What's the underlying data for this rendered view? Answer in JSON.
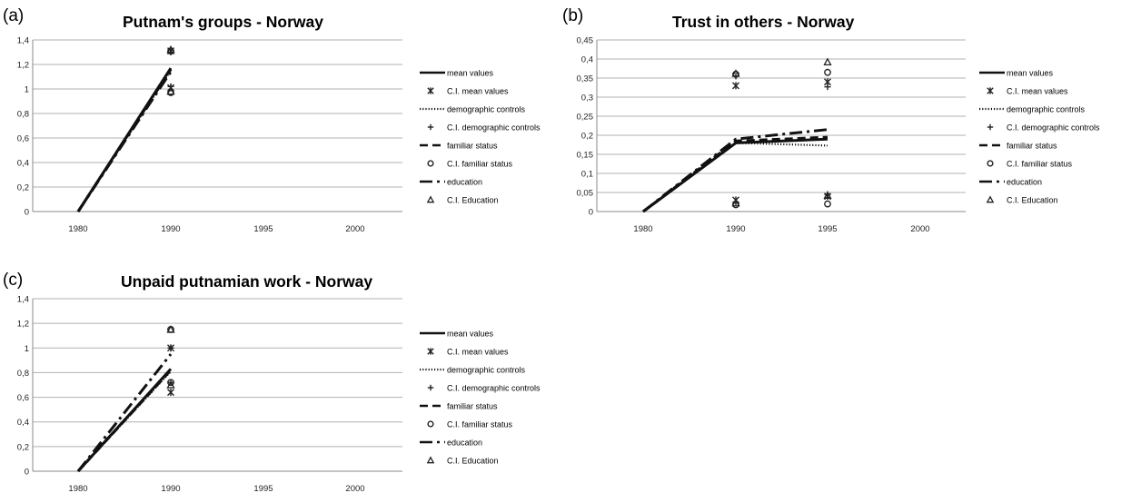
{
  "chart_data": [
    {
      "panel_label": "(a)",
      "type": "line",
      "title": "Putnam's groups - Norway",
      "x_categories": [
        "1980",
        "1990",
        "1995",
        "2000"
      ],
      "y_ticks": [
        "0",
        "0,2",
        "0,4",
        "0,6",
        "0,8",
        "1",
        "1,2",
        "1,4"
      ],
      "ylim": [
        0,
        1.4
      ],
      "grid": true,
      "legend_position": "right",
      "legend": [
        "mean values",
        "C.I. mean values",
        "demographic controls",
        "C.I. demographic controls",
        "familiar status",
        "C.I. familiar status",
        "education",
        "C.I. Education"
      ],
      "series": [
        {
          "name": "mean values",
          "style": "solid",
          "x": [
            "1980",
            "1990"
          ],
          "values": [
            0,
            1.17
          ]
        },
        {
          "name": "demographic controls",
          "style": "dotted",
          "x": [
            "1980",
            "1990"
          ],
          "values": [
            0,
            1.15
          ]
        },
        {
          "name": "familiar status",
          "style": "dashed",
          "x": [
            "1980",
            "1990"
          ],
          "values": [
            0,
            1.16
          ]
        },
        {
          "name": "education",
          "style": "dashdot",
          "x": [
            "1980",
            "1990"
          ],
          "values": [
            0,
            1.14
          ]
        }
      ],
      "ci_points": [
        {
          "name": "C.I. mean values",
          "marker": "asterisk",
          "x": [
            "1990",
            "1990"
          ],
          "values": [
            1.31,
            1.01
          ]
        },
        {
          "name": "C.I. demographic controls",
          "marker": "plus",
          "x": [
            "1990",
            "1990"
          ],
          "values": [
            1.3,
            1.02
          ]
        },
        {
          "name": "C.I. familiar status",
          "marker": "circle",
          "x": [
            "1990",
            "1990"
          ],
          "values": [
            1.31,
            0.97
          ]
        },
        {
          "name": "C.I. Education",
          "marker": "triangle",
          "x": [
            "1990",
            "1990"
          ],
          "values": [
            1.32,
            0.98
          ]
        }
      ]
    },
    {
      "panel_label": "(b)",
      "type": "line",
      "title": "Trust in others - Norway",
      "x_categories": [
        "1980",
        "1990",
        "1995",
        "2000"
      ],
      "y_ticks": [
        "0",
        "0,05",
        "0,1",
        "0,15",
        "0,2",
        "0,25",
        "0,3",
        "0,35",
        "0,4",
        "0,45"
      ],
      "ylim": [
        0,
        0.45
      ],
      "grid": true,
      "legend_position": "right",
      "legend": [
        "mean values",
        "C.I. mean values",
        "demographic controls",
        "C.I. demographic controls",
        "familiar status",
        "C.I. familiar status",
        "education",
        "C.I. Education"
      ],
      "series": [
        {
          "name": "mean values",
          "style": "solid",
          "x": [
            "1980",
            "1990",
            "1995"
          ],
          "values": [
            0,
            0.18,
            0.19
          ]
        },
        {
          "name": "demographic controls",
          "style": "dotted",
          "x": [
            "1980",
            "1990",
            "1995"
          ],
          "values": [
            0,
            0.18,
            0.173
          ]
        },
        {
          "name": "familiar status",
          "style": "dashed",
          "x": [
            "1980",
            "1990",
            "1995"
          ],
          "values": [
            0,
            0.185,
            0.195
          ]
        },
        {
          "name": "education",
          "style": "dashdot",
          "x": [
            "1980",
            "1990",
            "1995"
          ],
          "values": [
            0,
            0.19,
            0.215
          ]
        }
      ],
      "ci_points": [
        {
          "name": "C.I. mean values",
          "marker": "asterisk",
          "x": [
            "1990",
            "1990",
            "1995",
            "1995"
          ],
          "values": [
            0.33,
            0.03,
            0.34,
            0.04
          ]
        },
        {
          "name": "C.I. demographic controls",
          "marker": "plus",
          "x": [
            "1990",
            "1990",
            "1995",
            "1995"
          ],
          "values": [
            0.355,
            0.025,
            0.327,
            0.045
          ]
        },
        {
          "name": "C.I. familiar status",
          "marker": "circle",
          "x": [
            "1990",
            "1990",
            "1995",
            "1995"
          ],
          "values": [
            0.36,
            0.018,
            0.365,
            0.02
          ]
        },
        {
          "name": "C.I. Education",
          "marker": "triangle",
          "x": [
            "1990",
            "1990",
            "1995",
            "1995"
          ],
          "values": [
            0.362,
            0.022,
            0.392,
            0.042
          ]
        }
      ]
    },
    {
      "panel_label": "(c)",
      "type": "line",
      "title": "Unpaid putnamian work - Norway",
      "x_categories": [
        "1980",
        "1990",
        "1995",
        "2000"
      ],
      "y_ticks": [
        "0",
        "0,2",
        "0,4",
        "0,6",
        "0,8",
        "1",
        "1,2",
        "1,4"
      ],
      "ylim": [
        0,
        1.4
      ],
      "grid": true,
      "legend_position": "right",
      "legend": [
        "mean values",
        "C.I. mean values",
        "demographic controls",
        "C.I. demographic controls",
        "familiar status",
        "C.I. familiar status",
        "education",
        "C.I. Education"
      ],
      "series": [
        {
          "name": "mean values",
          "style": "solid",
          "x": [
            "1980",
            "1990"
          ],
          "values": [
            0,
            0.83
          ]
        },
        {
          "name": "demographic controls",
          "style": "dotted",
          "x": [
            "1980",
            "1990"
          ],
          "values": [
            0,
            0.81
          ]
        },
        {
          "name": "familiar status",
          "style": "dashed",
          "x": [
            "1980",
            "1990"
          ],
          "values": [
            0,
            0.82
          ]
        },
        {
          "name": "education",
          "style": "dashdot",
          "x": [
            "1980",
            "1990"
          ],
          "values": [
            0,
            0.95
          ]
        }
      ],
      "ci_points": [
        {
          "name": "C.I. mean values",
          "marker": "asterisk",
          "x": [
            "1990",
            "1990"
          ],
          "values": [
            1.0,
            0.64
          ]
        },
        {
          "name": "C.I. demographic controls",
          "marker": "plus",
          "x": [
            "1990",
            "1990"
          ],
          "values": [
            1.0,
            0.72
          ]
        },
        {
          "name": "C.I. familiar status",
          "marker": "circle",
          "x": [
            "1990",
            "1990"
          ],
          "values": [
            1.15,
            0.72
          ]
        },
        {
          "name": "C.I. Education",
          "marker": "triangle",
          "x": [
            "1990",
            "1990"
          ],
          "values": [
            1.15,
            0.7
          ]
        }
      ]
    }
  ]
}
